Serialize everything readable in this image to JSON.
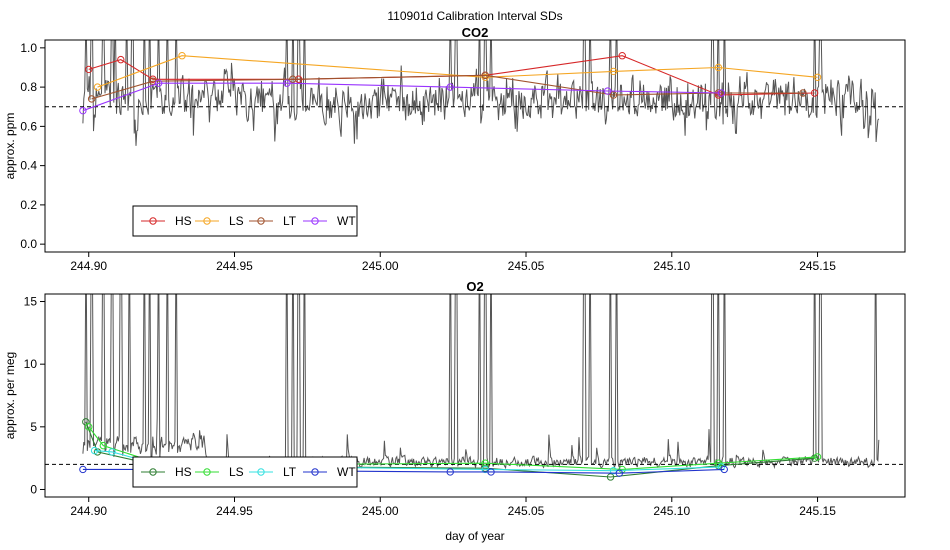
{
  "figure": {
    "title": "110901d   Calibration Interval SDs",
    "xlabel": "day of year"
  },
  "chart_data": [
    {
      "type": "line",
      "title": "CO2",
      "xlabel": "",
      "ylabel": "approx. ppm",
      "xlim": [
        244.885,
        245.18
      ],
      "ylim": [
        -0.04,
        1.04
      ],
      "xticks": [
        244.9,
        244.95,
        245.0,
        245.05,
        245.1,
        245.15
      ],
      "xtick_labels": [
        "244.90",
        "244.95",
        "245.00",
        "245.05",
        "245.10",
        "245.15"
      ],
      "yticks": [
        0.0,
        0.2,
        0.4,
        0.6,
        0.8,
        1.0
      ],
      "ytick_labels": [
        "0.0",
        "0.2",
        "0.4",
        "0.6",
        "0.8",
        "1.0"
      ],
      "hline": 0.7,
      "background_series": {
        "name": "interval SD trace",
        "color": "#555555",
        "x_start": 244.898,
        "x_end": 245.171,
        "baseline": 0.74,
        "spike_top": 1.05,
        "spike_x": [
          244.899,
          244.901,
          244.905,
          244.908,
          244.909,
          244.913,
          244.915,
          244.919,
          244.921,
          244.924,
          244.927,
          244.93,
          244.968,
          244.97,
          244.972,
          244.974,
          245.024,
          245.026,
          245.034,
          245.036,
          245.038,
          245.07,
          245.072,
          245.079,
          245.081,
          245.114,
          245.116,
          245.118,
          245.149,
          245.151
        ]
      },
      "series": [
        {
          "name": "HS",
          "color": "#d62728",
          "x": [
            244.9,
            244.911,
            244.922,
            244.972,
            245.036,
            245.083,
            245.116,
            245.149
          ],
          "y": [
            0.89,
            0.94,
            0.84,
            0.84,
            0.86,
            0.96,
            0.76,
            0.77
          ]
        },
        {
          "name": "LS",
          "color": "#f5a623",
          "x": [
            244.903,
            244.932,
            245.036,
            245.08,
            245.116,
            245.15
          ],
          "y": [
            0.8,
            0.96,
            0.85,
            0.88,
            0.9,
            0.85
          ]
        },
        {
          "name": "LT",
          "color": "#a0522d",
          "x": [
            244.901,
            244.922,
            244.97,
            245.036,
            245.08,
            245.116,
            245.145
          ],
          "y": [
            0.74,
            0.83,
            0.84,
            0.86,
            0.76,
            0.77,
            0.77
          ]
        },
        {
          "name": "WT",
          "color": "#9933ff",
          "x": [
            244.898,
            244.924,
            244.968,
            245.024,
            245.078,
            245.117
          ],
          "y": [
            0.68,
            0.82,
            0.82,
            0.8,
            0.78,
            0.77
          ]
        }
      ],
      "legend": {
        "placement": "bottom-left",
        "entries": [
          {
            "label": "HS",
            "color": "#d62728"
          },
          {
            "label": "LS",
            "color": "#f5a623"
          },
          {
            "label": "LT",
            "color": "#a0522d"
          },
          {
            "label": "WT",
            "color": "#9933ff"
          }
        ]
      }
    },
    {
      "type": "line",
      "title": "O2",
      "xlabel": "day of year",
      "ylabel": "approx. per meg",
      "xlim": [
        244.885,
        245.18
      ],
      "ylim": [
        -0.6,
        15.6
      ],
      "xticks": [
        244.9,
        244.95,
        245.0,
        245.05,
        245.1,
        245.15
      ],
      "xtick_labels": [
        "244.90",
        "244.95",
        "245.00",
        "245.05",
        "245.10",
        "245.15"
      ],
      "yticks": [
        0,
        5,
        10,
        15
      ],
      "ytick_labels": [
        "0",
        "5",
        "10",
        "15"
      ],
      "hline": 2.0,
      "background_series": {
        "name": "interval SD trace",
        "color": "#555555",
        "x_start": 244.898,
        "x_end": 245.171,
        "baseline": 2.2,
        "spike_top": 15.6,
        "spike_x": [
          244.899,
          244.901,
          244.905,
          244.908,
          244.911,
          244.914,
          244.919,
          244.921,
          244.924,
          244.927,
          244.93,
          244.968,
          244.97,
          244.972,
          244.974,
          245.024,
          245.026,
          245.034,
          245.036,
          245.038,
          245.07,
          245.072,
          245.079,
          245.081,
          245.114,
          245.116,
          245.118,
          245.149,
          245.151,
          245.17
        ]
      },
      "series": [
        {
          "name": "HS",
          "color": "#2e7d32",
          "x": [
            244.899,
            244.903,
            244.922,
            244.972,
            245.036,
            245.079,
            245.116,
            245.149
          ],
          "y": [
            5.4,
            3.0,
            2.0,
            1.8,
            1.7,
            1.0,
            1.9,
            2.5
          ]
        },
        {
          "name": "LS",
          "color": "#33dd33",
          "x": [
            244.9,
            244.905,
            244.925,
            244.972,
            245.036,
            245.083,
            245.116,
            245.15
          ],
          "y": [
            5.0,
            3.5,
            2.0,
            2.0,
            2.1,
            1.6,
            2.1,
            2.6
          ]
        },
        {
          "name": "LT",
          "color": "#33e0e0",
          "x": [
            244.902,
            244.908,
            244.925,
            244.97,
            245.036,
            245.08,
            245.117
          ],
          "y": [
            3.1,
            3.0,
            1.9,
            1.8,
            1.6,
            1.5,
            1.8
          ]
        },
        {
          "name": "WT",
          "color": "#2233cc",
          "x": [
            244.898,
            244.924,
            244.968,
            245.024,
            245.038,
            245.082,
            245.118
          ],
          "y": [
            1.6,
            1.6,
            1.5,
            1.4,
            1.4,
            1.3,
            1.6
          ]
        }
      ],
      "legend": {
        "placement": "bottom-left",
        "entries": [
          {
            "label": "HS",
            "color": "#2e7d32"
          },
          {
            "label": "LS",
            "color": "#33dd33"
          },
          {
            "label": "LT",
            "color": "#33e0e0"
          },
          {
            "label": "WT",
            "color": "#2233cc"
          }
        ]
      }
    }
  ]
}
